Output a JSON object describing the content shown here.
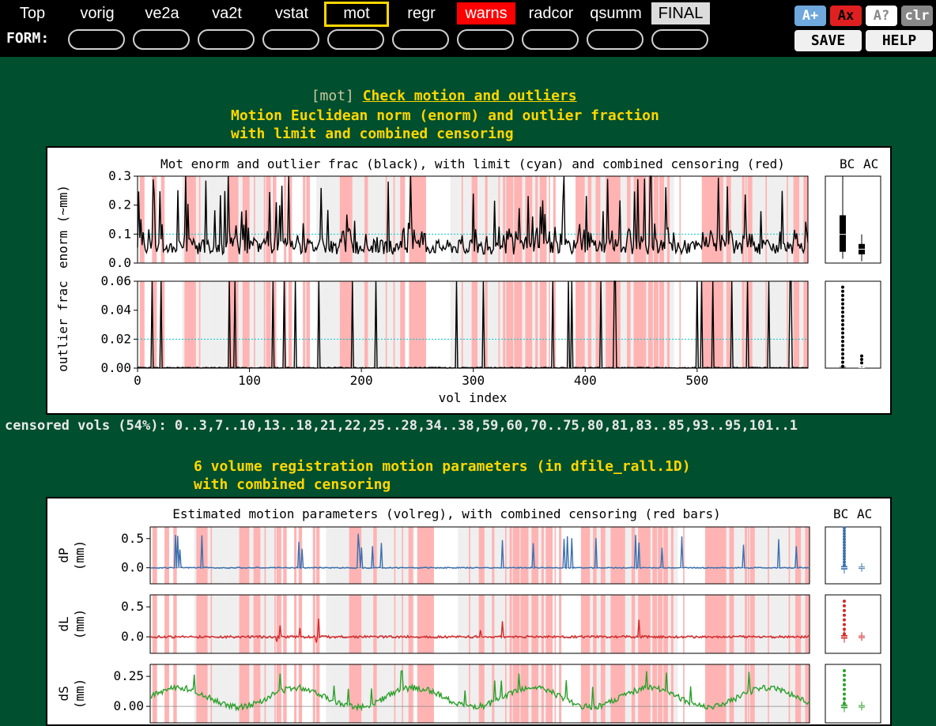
{
  "nav": {
    "links": [
      "Top",
      "vorig",
      "ve2a",
      "va2t",
      "vstat",
      "mot",
      "regr",
      "warns",
      "radcor",
      "qsumm",
      "FINAL"
    ],
    "current": "mot",
    "form_label": "FORM:",
    "buttons": {
      "font_up": "A+",
      "font_reset": "Ax",
      "help_toggle": "A?",
      "clear": "clr",
      "save": "SAVE",
      "help": "HELP"
    }
  },
  "colors": {
    "page_bg": "#004f2e",
    "heading": "#ffd700",
    "warn": "#ff0000",
    "censor_band": "#ffb3b3",
    "plot_bg": "#efefef",
    "limit_line": "#00cccc",
    "dP": "#3a70b0",
    "dL": "#d62728",
    "dS": "#2ca02c"
  },
  "section": {
    "tag": "[mot]",
    "title": "Check motion and outliers"
  },
  "fig1": {
    "heading": [
      "Motion Euclidean norm (enorm) and outlier fraction",
      "with limit and combined censoring"
    ],
    "chart_data": {
      "type": "line",
      "title": "Mot enorm and outlier frac (black), with limit (cyan) and combined censoring (red)",
      "xlabel": "vol index",
      "x_range": [
        0,
        599
      ],
      "x_ticks": [
        "0",
        "100",
        "200",
        "300",
        "400",
        "500"
      ],
      "boxplot_labels": [
        "BC",
        "AC"
      ],
      "subplots": [
        {
          "name": "enorm",
          "ylabel": "enorm (~mm)",
          "ylim": [
            0,
            0.3
          ],
          "y_ticks": [
            "0.0",
            "0.1",
            "0.2",
            "0.3"
          ],
          "limit": 0.1
        },
        {
          "name": "outlier frac",
          "ylabel": "outlier frac",
          "ylim": [
            0,
            0.06
          ],
          "y_ticks": [
            "0.00",
            "0.02",
            "0.04",
            "0.06"
          ],
          "limit": 0.02
        }
      ]
    }
  },
  "censor_text": "censored vols (54%): 0..3,7..10,13..18,21,22,25..28,34..38,59,60,70..75,80,81,83..85,93..95,101..1",
  "fig2": {
    "heading": [
      "6 volume registration motion parameters (in dfile_rall.1D)",
      "with combined censoring"
    ],
    "chart_data": {
      "type": "line",
      "title": "Estimated motion parameters (volreg), with combined censoring (red bars)",
      "x_range": [
        0,
        599
      ],
      "boxplot_labels": [
        "BC",
        "AC"
      ],
      "subplots": [
        {
          "name": "dP",
          "ylabel": "dP",
          "unit": "(mm)",
          "y_ticks": [
            "0.5",
            "0.0"
          ]
        },
        {
          "name": "dL",
          "ylabel": "dL",
          "unit": "(mm)",
          "y_ticks": [
            "0.5",
            "0.0"
          ]
        },
        {
          "name": "dS",
          "ylabel": "dS",
          "unit": "(mm)",
          "y_ticks": [
            "0.25",
            "0.00"
          ]
        }
      ]
    }
  }
}
